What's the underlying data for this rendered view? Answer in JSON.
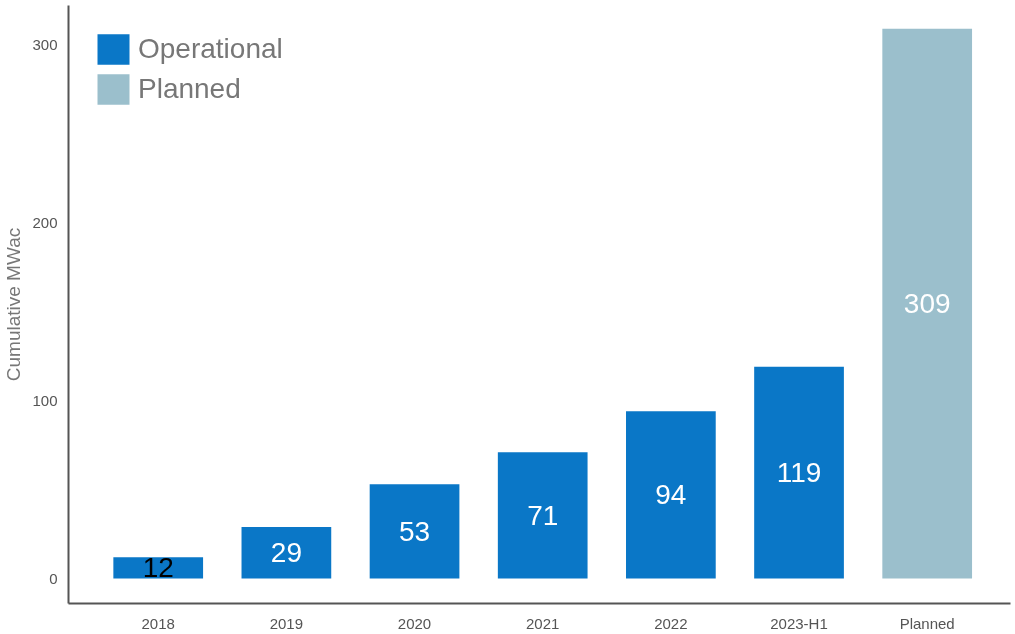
{
  "chart_data": {
    "type": "bar",
    "ylabel": "Cumulative MWac",
    "categories": [
      "2018",
      "2019",
      "2020",
      "2021",
      "2022",
      "2023-H1",
      "Planned"
    ],
    "series": [
      {
        "name": "Operational",
        "color": "#0a77c7",
        "values": [
          12,
          29,
          53,
          71,
          94,
          119,
          null
        ]
      },
      {
        "name": "Planned",
        "color": "#9bbfcc",
        "values": [
          null,
          null,
          null,
          null,
          null,
          null,
          309
        ]
      }
    ],
    "ylim": [
      -14,
      322
    ],
    "yticks": [
      0,
      100,
      200,
      300
    ],
    "grid": false,
    "legend": "top left",
    "data_labels": true
  }
}
